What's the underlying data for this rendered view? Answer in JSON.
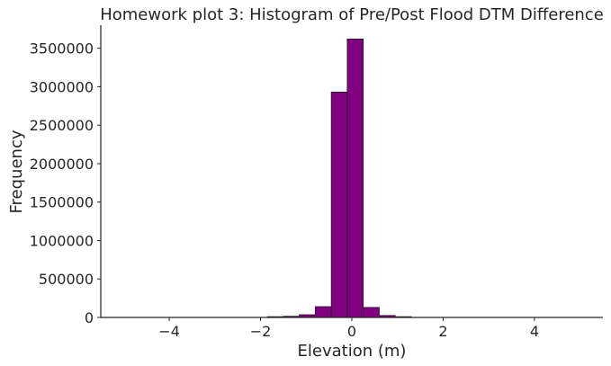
{
  "chart_data": {
    "type": "bar",
    "title": "Homework plot 3: Histogram of Pre/Post Flood DTM Difference",
    "xlabel": "Elevation (m)",
    "ylabel": "Frequency",
    "xlim": [
      -5.5,
      5.5
    ],
    "ylim": [
      0,
      3800000
    ],
    "xticks": [
      -4,
      -2,
      0,
      2,
      4
    ],
    "xtick_labels": [
      "−4",
      "−2",
      "0",
      "2",
      "4"
    ],
    "yticks": [
      0,
      500000,
      1000000,
      1500000,
      2000000,
      2500000,
      3000000,
      3500000
    ],
    "ytick_labels": [
      "0",
      "500000",
      "1000000",
      "1500000",
      "2000000",
      "2500000",
      "3000000",
      "3500000"
    ],
    "grid": false,
    "bar_color": "#800080",
    "edge_color": "#1a1a1a",
    "bins": [
      {
        "x0": -5.0,
        "x1": -4.65,
        "count": 0
      },
      {
        "x0": -4.65,
        "x1": -4.3,
        "count": 0
      },
      {
        "x0": -4.3,
        "x1": -3.95,
        "count": 0
      },
      {
        "x0": -3.95,
        "x1": -3.6,
        "count": 0
      },
      {
        "x0": -3.6,
        "x1": -3.25,
        "count": 0
      },
      {
        "x0": -3.25,
        "x1": -2.9,
        "count": 0
      },
      {
        "x0": -2.9,
        "x1": -2.55,
        "count": 0
      },
      {
        "x0": -2.55,
        "x1": -2.2,
        "count": 0
      },
      {
        "x0": -2.2,
        "x1": -1.85,
        "count": 0
      },
      {
        "x0": -1.85,
        "x1": -1.5,
        "count": 10000
      },
      {
        "x0": -1.5,
        "x1": -1.15,
        "count": 15000
      },
      {
        "x0": -1.15,
        "x1": -0.8,
        "count": 35000
      },
      {
        "x0": -0.8,
        "x1": -0.45,
        "count": 140000
      },
      {
        "x0": -0.45,
        "x1": -0.1,
        "count": 2930000
      },
      {
        "x0": -0.1,
        "x1": 0.25,
        "count": 3620000
      },
      {
        "x0": 0.25,
        "x1": 0.6,
        "count": 130000
      },
      {
        "x0": 0.6,
        "x1": 0.95,
        "count": 25000
      },
      {
        "x0": 0.95,
        "x1": 1.3,
        "count": 10000
      },
      {
        "x0": 1.3,
        "x1": 1.65,
        "count": 0
      },
      {
        "x0": 1.65,
        "x1": 2.0,
        "count": 0
      },
      {
        "x0": 2.0,
        "x1": 2.35,
        "count": 0
      },
      {
        "x0": 2.35,
        "x1": 2.7,
        "count": 0
      },
      {
        "x0": 2.7,
        "x1": 3.05,
        "count": 0
      },
      {
        "x0": 3.05,
        "x1": 3.4,
        "count": 0
      },
      {
        "x0": 3.4,
        "x1": 3.75,
        "count": 0
      },
      {
        "x0": 3.75,
        "x1": 4.1,
        "count": 0
      },
      {
        "x0": 4.1,
        "x1": 4.45,
        "count": 0
      },
      {
        "x0": 4.45,
        "x1": 4.8,
        "count": 0
      },
      {
        "x0": 4.8,
        "x1": 5.15,
        "count": 0
      }
    ]
  }
}
